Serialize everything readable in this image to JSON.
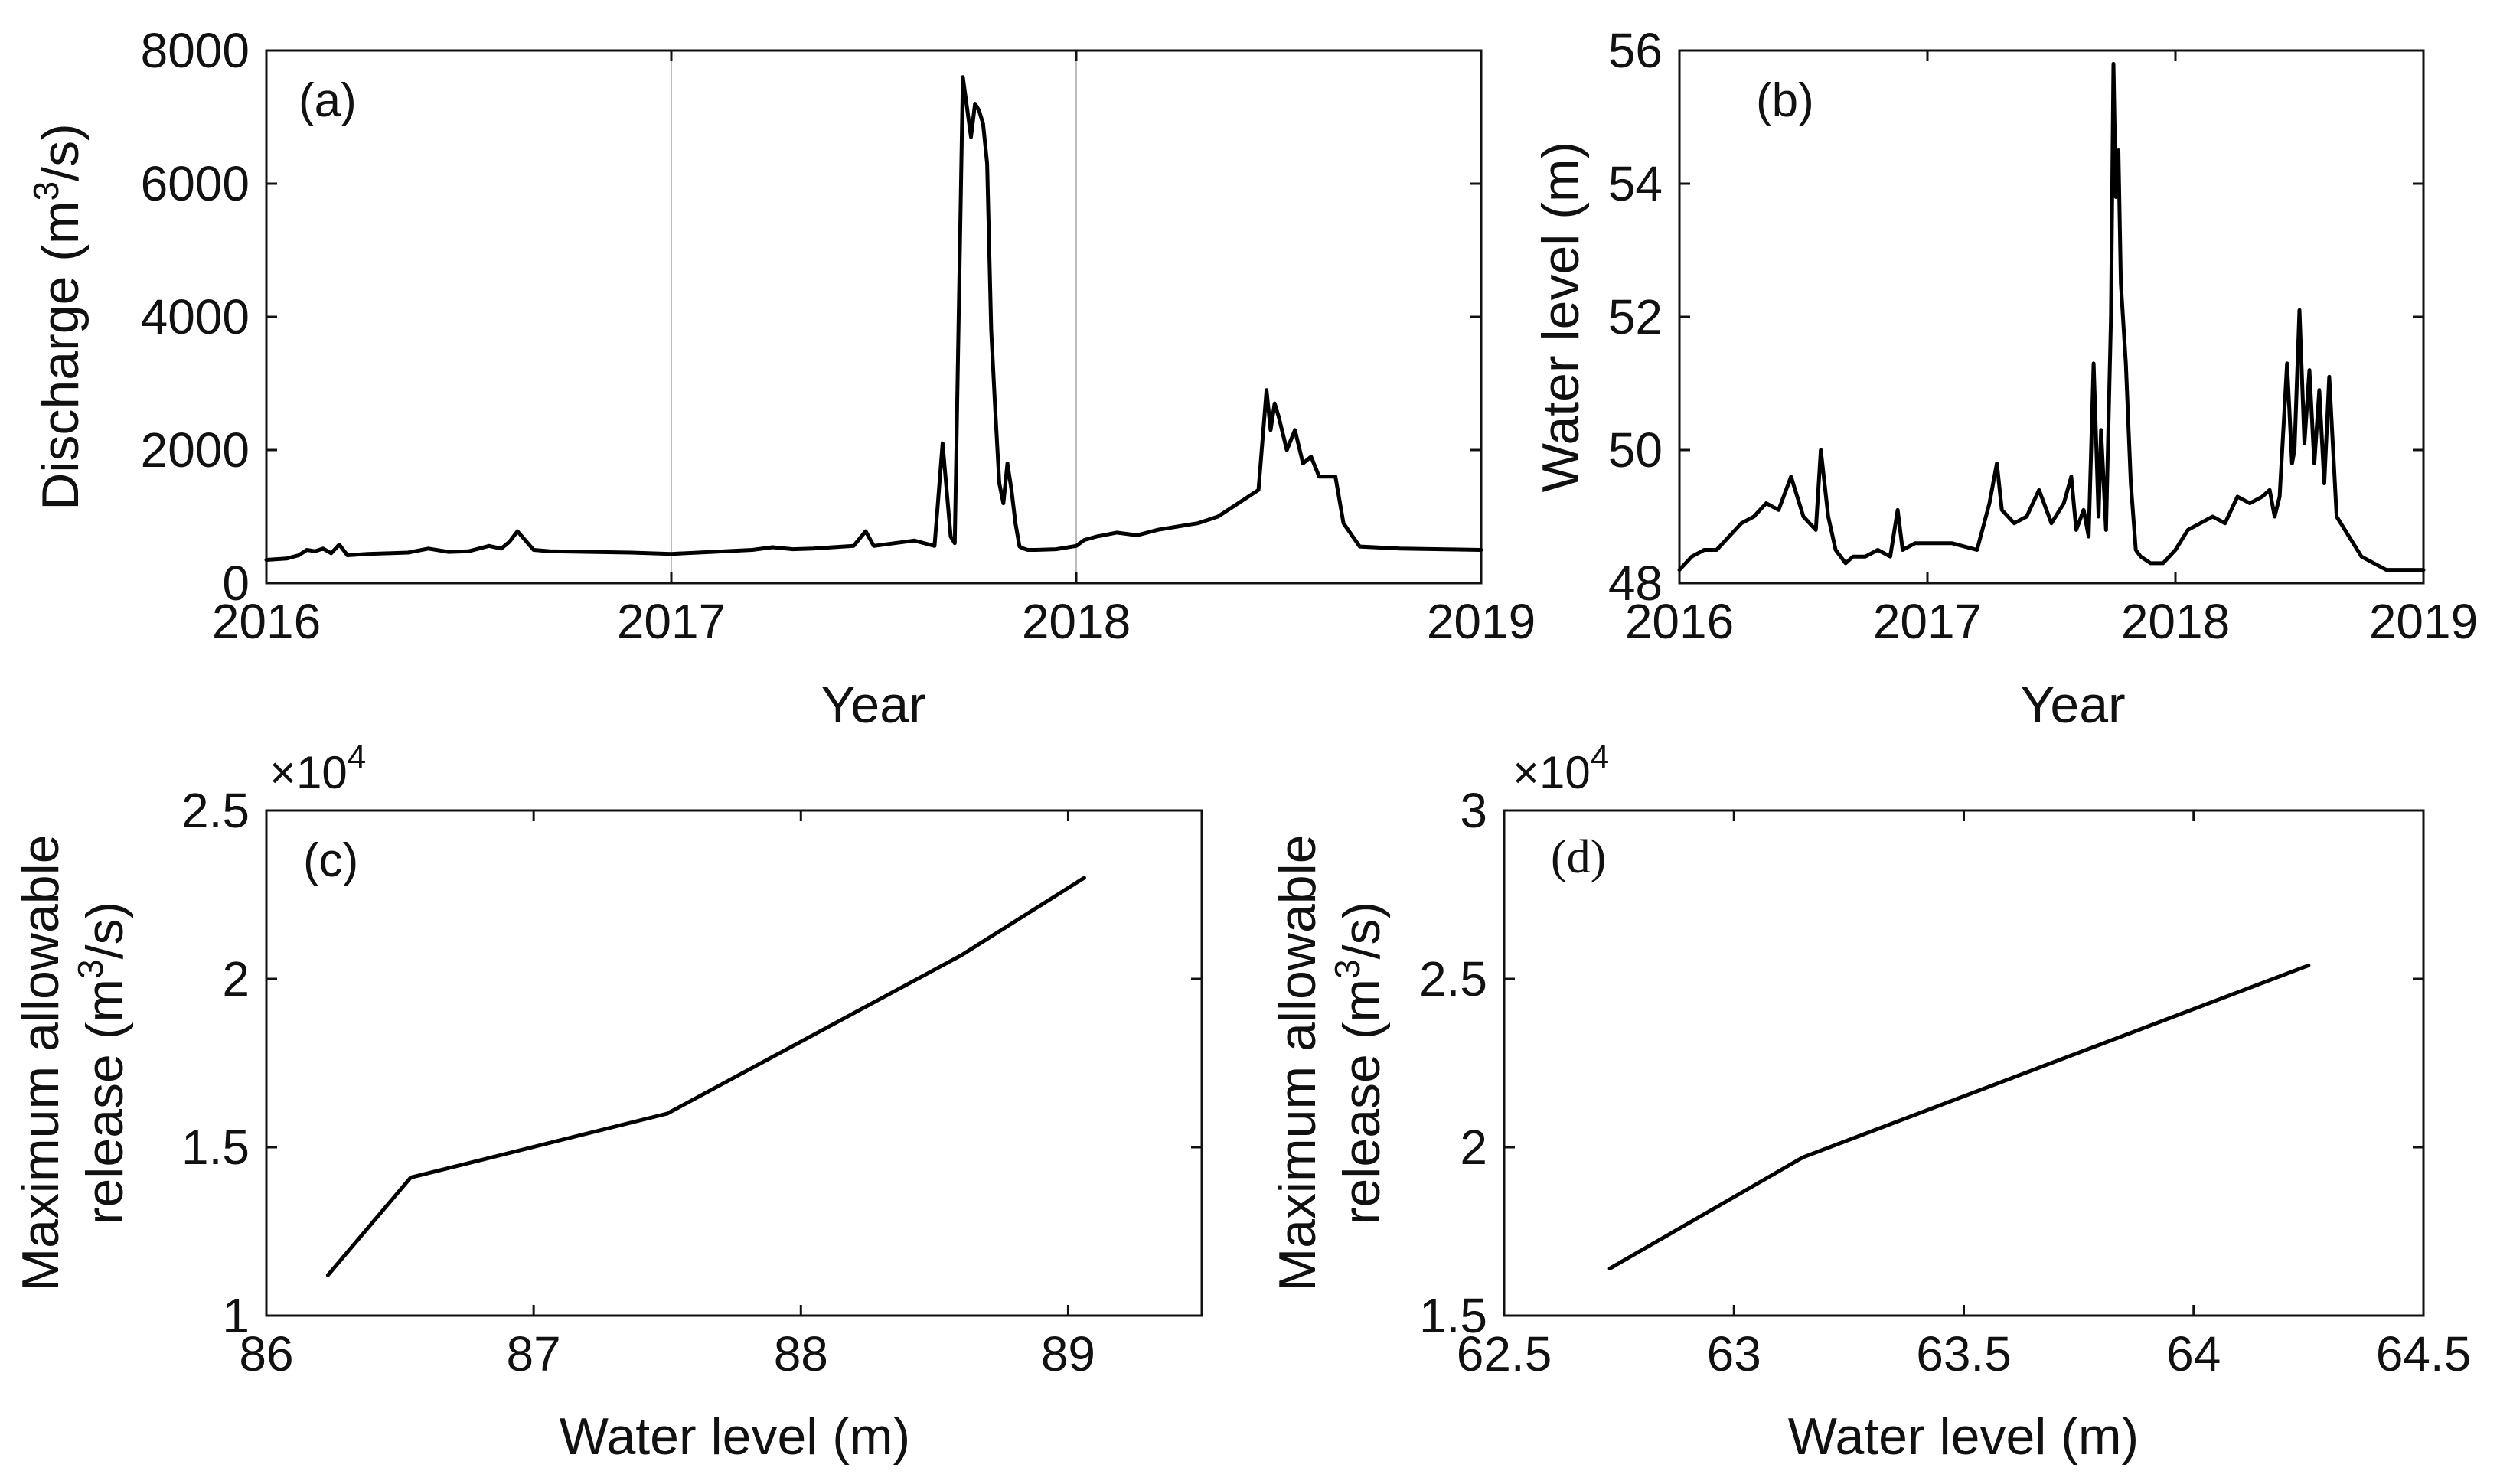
{
  "chart_data": [
    {
      "id": "a",
      "type": "line",
      "panel_label": "(a)",
      "xlabel": "Year",
      "ylabel": "Discharge (m³/s)",
      "ylabel_parts": {
        "before": "Discharge (m",
        "sup": "3",
        "after": "/s)"
      },
      "xlim": [
        2016,
        2019
      ],
      "ylim": [
        0,
        8000
      ],
      "x_ticks": [
        2016,
        2017,
        2018,
        2019
      ],
      "y_ticks": [
        0,
        2000,
        4000,
        6000,
        8000
      ],
      "vertical_reference_lines": [
        2017,
        2018
      ],
      "grid": false,
      "series": [
        {
          "x": [
            2016.0,
            2016.05,
            2016.08,
            2016.1,
            2016.12,
            2016.14,
            2016.16,
            2016.18,
            2016.2,
            2016.25,
            2016.3,
            2016.35,
            2016.4,
            2016.45,
            2016.5,
            2016.55,
            2016.58,
            2016.6,
            2016.62,
            2016.64,
            2016.66,
            2016.7,
            2016.8,
            2016.9,
            2017.0,
            2017.1,
            2017.2,
            2017.25,
            2017.3,
            2017.35,
            2017.4,
            2017.45,
            2017.48,
            2017.5,
            2017.55,
            2017.6,
            2017.65,
            2017.67,
            2017.69,
            2017.7,
            2017.72,
            2017.74,
            2017.75,
            2017.76,
            2017.77,
            2017.78,
            2017.79,
            2017.8,
            2017.81,
            2017.82,
            2017.83,
            2017.84,
            2017.85,
            2017.86,
            2017.87,
            2017.88,
            2017.9,
            2017.95,
            2018.0,
            2018.02,
            2018.05,
            2018.1,
            2018.15,
            2018.2,
            2018.25,
            2018.3,
            2018.35,
            2018.4,
            2018.45,
            2018.47,
            2018.48,
            2018.49,
            2018.5,
            2018.52,
            2018.54,
            2018.56,
            2018.58,
            2018.6,
            2018.62,
            2018.64,
            2018.66,
            2018.7,
            2018.8,
            2018.9,
            2019.0
          ],
          "y": [
            350,
            370,
            420,
            500,
            480,
            520,
            450,
            580,
            420,
            440,
            450,
            460,
            520,
            470,
            480,
            560,
            520,
            620,
            780,
            640,
            500,
            480,
            470,
            460,
            440,
            470,
            500,
            540,
            510,
            520,
            540,
            560,
            780,
            560,
            600,
            640,
            560,
            2100,
            700,
            600,
            7600,
            6700,
            7200,
            7100,
            6900,
            6300,
            3800,
            2600,
            1500,
            1200,
            1800,
            1400,
            900,
            550,
            520,
            500,
            500,
            510,
            560,
            650,
            700,
            760,
            720,
            800,
            850,
            900,
            1000,
            1200,
            1400,
            2900,
            2300,
            2700,
            2500,
            2000,
            2300,
            1800,
            1900,
            1600,
            1600,
            1600,
            900,
            550,
            520,
            510,
            500
          ]
        }
      ]
    },
    {
      "id": "b",
      "type": "line",
      "panel_label": "(b)",
      "xlabel": "Year",
      "ylabel": "Water level (m)",
      "xlim": [
        2016,
        2019
      ],
      "ylim": [
        48,
        56
      ],
      "x_ticks": [
        2016,
        2017,
        2018,
        2019
      ],
      "y_ticks": [
        48,
        50,
        52,
        54,
        56
      ],
      "grid": false,
      "series": [
        {
          "x": [
            2016.0,
            2016.05,
            2016.1,
            2016.15,
            2016.2,
            2016.25,
            2016.3,
            2016.35,
            2016.4,
            2016.45,
            2016.5,
            2016.55,
            2016.57,
            2016.6,
            2016.63,
            2016.65,
            2016.67,
            2016.7,
            2016.75,
            2016.8,
            2016.85,
            2016.88,
            2016.9,
            2016.95,
            2017.0,
            2017.1,
            2017.2,
            2017.25,
            2017.28,
            2017.3,
            2017.35,
            2017.4,
            2017.45,
            2017.5,
            2017.55,
            2017.58,
            2017.6,
            2017.63,
            2017.65,
            2017.67,
            2017.69,
            2017.7,
            2017.72,
            2017.74,
            2017.75,
            2017.76,
            2017.77,
            2017.78,
            2017.8,
            2017.82,
            2017.84,
            2017.86,
            2017.9,
            2017.95,
            2018.0,
            2018.05,
            2018.1,
            2018.15,
            2018.2,
            2018.25,
            2018.3,
            2018.35,
            2018.38,
            2018.4,
            2018.42,
            2018.45,
            2018.47,
            2018.48,
            2018.5,
            2018.52,
            2018.54,
            2018.56,
            2018.58,
            2018.6,
            2018.62,
            2018.65,
            2018.7,
            2018.75,
            2018.8,
            2018.85,
            2018.9,
            2018.95,
            2019.0
          ],
          "y": [
            48.2,
            48.4,
            48.5,
            48.5,
            48.7,
            48.9,
            49.0,
            49.2,
            49.1,
            49.6,
            49.0,
            48.8,
            50.0,
            49.0,
            48.5,
            48.4,
            48.3,
            48.4,
            48.4,
            48.5,
            48.4,
            49.1,
            48.5,
            48.6,
            48.6,
            48.6,
            48.5,
            49.2,
            49.8,
            49.1,
            48.9,
            49.0,
            49.4,
            48.9,
            49.2,
            49.6,
            48.8,
            49.1,
            48.7,
            51.3,
            49.0,
            50.3,
            48.8,
            52.0,
            55.8,
            53.8,
            54.5,
            52.5,
            51.3,
            49.5,
            48.5,
            48.4,
            48.3,
            48.3,
            48.5,
            48.8,
            48.9,
            49.0,
            48.9,
            49.3,
            49.2,
            49.3,
            49.4,
            49.0,
            49.3,
            51.3,
            49.8,
            50.0,
            52.1,
            50.1,
            51.2,
            49.8,
            50.9,
            49.5,
            51.1,
            49.0,
            48.7,
            48.4,
            48.3,
            48.2,
            48.2,
            48.2,
            48.2
          ]
        }
      ]
    },
    {
      "id": "c",
      "type": "line",
      "panel_label": "(c)",
      "xlabel": "Water level (m)",
      "ylabel_line1": "Maximum allowable",
      "ylabel_line2_parts": {
        "before": "release (m",
        "sup": "3",
        "after": "/s)"
      },
      "y_multiplier": "×10",
      "y_multiplier_exp": "4",
      "xlim": [
        86,
        89.5
      ],
      "ylim": [
        1,
        2.5
      ],
      "x_ticks": [
        86,
        87,
        88,
        89
      ],
      "y_ticks": [
        1,
        1.5,
        2,
        2.5
      ],
      "grid": false,
      "series": [
        {
          "x": [
            86.23,
            86.54,
            87.5,
            88.6,
            89.06
          ],
          "y": [
            1.12,
            1.41,
            1.6,
            2.07,
            2.3
          ]
        }
      ]
    },
    {
      "id": "d",
      "type": "line",
      "panel_label": "(d)",
      "xlabel": "Water level (m)",
      "ylabel_line1": "Maximum allowable",
      "ylabel_line2_parts": {
        "before": "release (m",
        "sup": "3",
        "after": "/s)"
      },
      "y_multiplier": "×10",
      "y_multiplier_exp": "4",
      "xlim": [
        62.5,
        64.5
      ],
      "ylim": [
        1.5,
        3
      ],
      "x_ticks": [
        62.5,
        63,
        63.5,
        64,
        64.5
      ],
      "y_ticks": [
        1.5,
        2,
        2.5,
        3
      ],
      "grid": false,
      "series": [
        {
          "x": [
            62.73,
            63.15,
            64.25
          ],
          "y": [
            1.64,
            1.97,
            2.54
          ]
        }
      ]
    }
  ]
}
